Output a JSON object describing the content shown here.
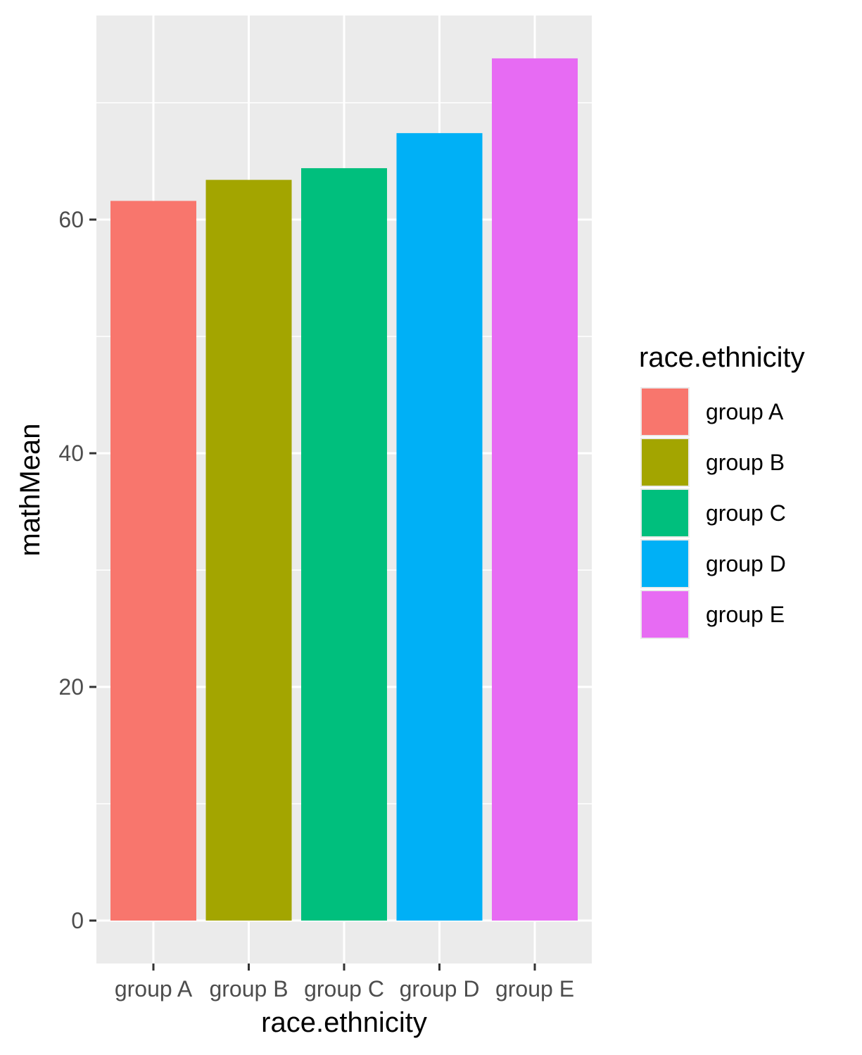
{
  "chart_data": {
    "type": "bar",
    "categories": [
      "group A",
      "group B",
      "group C",
      "group D",
      "group E"
    ],
    "values": [
      61.6,
      63.4,
      64.4,
      67.4,
      73.8
    ],
    "colors": [
      "#F8766D",
      "#A3A500",
      "#00BF7D",
      "#00B0F6",
      "#E76BF3"
    ],
    "xlabel": "race.ethnicity",
    "ylabel": "mathMean",
    "yticks": [
      0,
      20,
      40,
      60
    ],
    "yticks_minor": [
      10,
      30,
      50,
      70
    ],
    "ylim": [
      -3.7,
      77.5
    ],
    "grid": true,
    "panel_background": "#EBEBEB",
    "legend": {
      "title": "race.ethnicity",
      "placement": "right",
      "entries": [
        "group A",
        "group B",
        "group C",
        "group D",
        "group E"
      ]
    }
  }
}
